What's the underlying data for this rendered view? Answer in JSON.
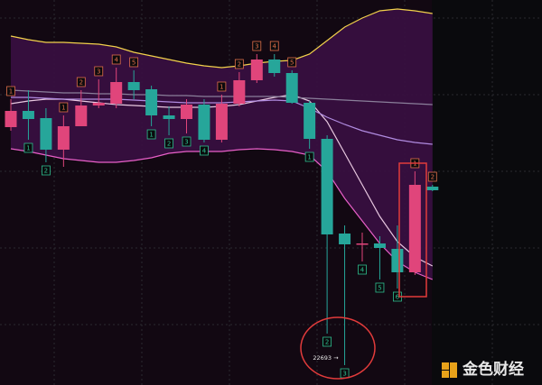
{
  "chart_data": {
    "type": "candlestick",
    "ylim": [
      22473,
      26743
    ],
    "up_color": "#e0457b",
    "down_color": "#26a69a",
    "open": [
      25333,
      25513,
      25433,
      25083,
      25343,
      25573,
      25593,
      25833,
      25753,
      25463,
      25423,
      25583,
      25193,
      25593,
      25853,
      26083,
      25933,
      25603,
      25203,
      24153,
      24033,
      24043,
      23983,
      23723,
      24673
    ],
    "high": [
      25643,
      25743,
      25543,
      25463,
      25743,
      25863,
      25993,
      25963,
      25793,
      25563,
      25643,
      25643,
      25693,
      25943,
      26143,
      26143,
      25963,
      25623,
      25243,
      24243,
      24163,
      24123,
      24243,
      24843,
      24693
    ],
    "low": [
      25293,
      25193,
      24943,
      24893,
      25343,
      25543,
      25543,
      25643,
      25343,
      25243,
      25263,
      25163,
      25163,
      25563,
      25823,
      25893,
      25593,
      25093,
      23043,
      22693,
      23843,
      23643,
      23543,
      23693,
      24623
    ],
    "close": [
      25513,
      25423,
      25083,
      25343,
      25573,
      25603,
      25833,
      25743,
      25463,
      25423,
      25583,
      25193,
      25593,
      25853,
      26083,
      25933,
      25603,
      25203,
      24143,
      24033,
      24043,
      23993,
      23723,
      24693,
      24633
    ],
    "series": [
      {
        "color": "#f2d14b",
        "values": [
          26343,
          26303,
          26273,
          26273,
          26263,
          26253,
          26223,
          26163,
          26123,
          26083,
          26043,
          26013,
          25993,
          26013,
          26043,
          26063,
          26073,
          26143,
          26293,
          26443,
          26543,
          26623,
          26643,
          26623,
          26593
        ]
      },
      {
        "color": "#e85fc8",
        "values": [
          25093,
          25063,
          25023,
          24983,
          24963,
          24943,
          24943,
          24963,
          24993,
          25043,
          25063,
          25063,
          25063,
          25083,
          25093,
          25083,
          25063,
          25023,
          24843,
          24543,
          24293,
          24043,
          23843,
          23723,
          23643
        ]
      },
      {
        "color": "#e8c8e0",
        "values": [
          25593,
          25623,
          25643,
          25643,
          25623,
          25603,
          25583,
          25573,
          25563,
          25553,
          25553,
          25553,
          25563,
          25583,
          25623,
          25663,
          25693,
          25623,
          25393,
          25043,
          24693,
          24343,
          24063,
          23893,
          23793
        ]
      },
      {
        "color": "#b08be0",
        "values": [
          25663,
          25663,
          25653,
          25643,
          25643,
          25643,
          25643,
          25633,
          25623,
          25613,
          25603,
          25603,
          25603,
          25613,
          25623,
          25633,
          25623,
          25543,
          25443,
          25363,
          25293,
          25243,
          25193,
          25163,
          25143
        ]
      },
      {
        "color": "#8a7f9a",
        "values": [
          25743,
          25733,
          25723,
          25713,
          25713,
          25703,
          25703,
          25693,
          25693,
          25683,
          25683,
          25673,
          25673,
          25673,
          25673,
          25673,
          25663,
          25653,
          25643,
          25633,
          25623,
          25613,
          25603,
          25593,
          25583
        ]
      }
    ],
    "annotations": [
      {
        "candle": 0,
        "text": "1",
        "side": "above"
      },
      {
        "candle": 3,
        "text": "1",
        "side": "above"
      },
      {
        "candle": 4,
        "text": "2",
        "side": "above"
      },
      {
        "candle": 5,
        "text": "3",
        "side": "above"
      },
      {
        "candle": 6,
        "text": "4",
        "side": "above"
      },
      {
        "candle": 7,
        "text": "5",
        "side": "above"
      },
      {
        "candle": 12,
        "text": "1",
        "side": "above"
      },
      {
        "candle": 13,
        "text": "2",
        "side": "above"
      },
      {
        "candle": 14,
        "text": "3",
        "side": "above"
      },
      {
        "candle": 15,
        "text": "4",
        "side": "above"
      },
      {
        "candle": 16,
        "text": "5",
        "side": "above"
      },
      {
        "candle": 23,
        "text": "1",
        "side": "above"
      },
      {
        "candle": 24,
        "text": "2",
        "side": "above"
      },
      {
        "candle": 1,
        "text": "1",
        "side": "below"
      },
      {
        "candle": 2,
        "text": "2",
        "side": "below"
      },
      {
        "candle": 8,
        "text": "1",
        "side": "below"
      },
      {
        "candle": 9,
        "text": "2",
        "side": "below"
      },
      {
        "candle": 10,
        "text": "3",
        "side": "below"
      },
      {
        "candle": 11,
        "text": "4",
        "side": "below"
      },
      {
        "candle": 17,
        "text": "1",
        "side": "below"
      },
      {
        "candle": 18,
        "text": "2",
        "side": "below"
      },
      {
        "candle": 19,
        "text": "3",
        "side": "below"
      },
      {
        "candle": 20,
        "text": "4",
        "side": "below"
      },
      {
        "candle": 21,
        "text": "5",
        "side": "below"
      },
      {
        "candle": 22,
        "text": "6",
        "side": "below"
      }
    ],
    "low_marker": {
      "candle": 19,
      "label": "22693 →"
    },
    "watermark": "金色财经"
  }
}
